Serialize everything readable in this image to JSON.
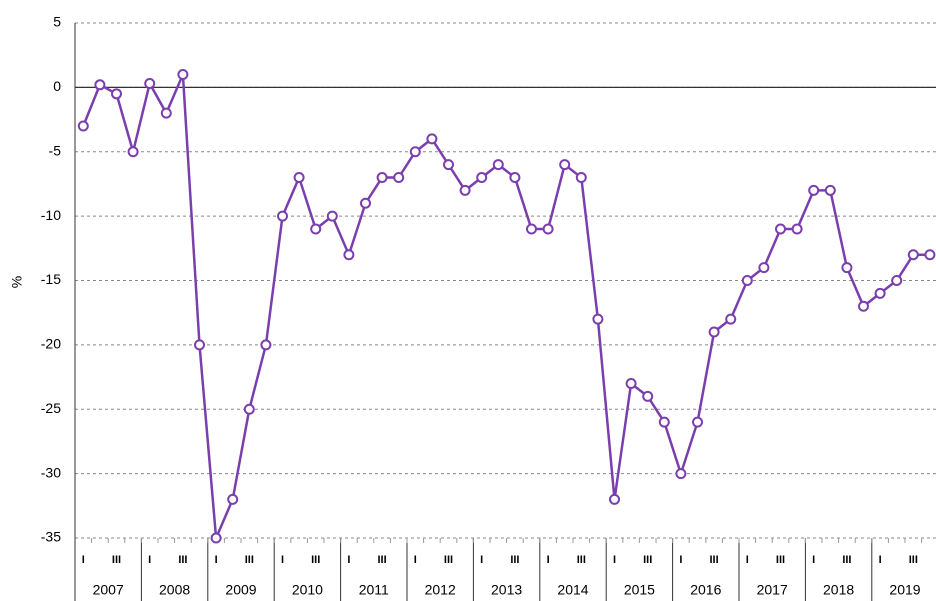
{
  "chart_data": {
    "type": "line",
    "y_label": "%",
    "categories": [
      "I",
      null,
      "III",
      null,
      "I",
      null,
      "III",
      null,
      "I",
      null,
      "III",
      null,
      "I",
      null,
      "III",
      null,
      "I",
      null,
      "III",
      null,
      "I",
      null,
      "III",
      null,
      "I",
      null,
      "III",
      null,
      "I",
      null,
      "III",
      null,
      "I",
      null,
      "III",
      null,
      "I",
      null,
      "III",
      null,
      "I",
      null,
      "III",
      null,
      "I",
      null,
      "III",
      null,
      "I",
      null,
      "III",
      null
    ],
    "year_labels": [
      "2007",
      "2008",
      "2009",
      "2010",
      "2011",
      "2012",
      "2013",
      "2014",
      "2015",
      "2016",
      "2017",
      "2018",
      "2019"
    ],
    "series": [
      {
        "color": "#7a3fad",
        "values": [
          -3,
          0.2,
          -0.5,
          -5,
          0.3,
          -2,
          1,
          -20,
          -35,
          -32,
          -25,
          -20,
          -10,
          -7,
          -11,
          -10,
          -13,
          -9,
          -7,
          -7,
          -5,
          -4,
          -6,
          -8,
          -7,
          -6,
          -7,
          -11,
          -11,
          -6,
          -7,
          -18,
          -32,
          -23,
          -24,
          -26,
          -30,
          -26,
          -19,
          -18,
          -15,
          -14,
          -11,
          -11,
          -8,
          -8,
          -14,
          -17,
          -16,
          -15,
          -13,
          -13
        ]
      }
    ],
    "ylim": [
      -35,
      5
    ],
    "yticks": [
      -35,
      -30,
      -25,
      -20,
      -15,
      -10,
      -5,
      0,
      5
    ],
    "grid": true
  }
}
